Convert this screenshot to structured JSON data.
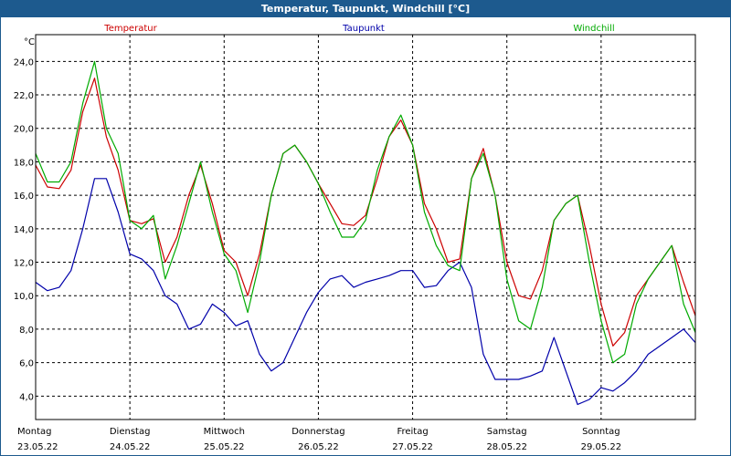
{
  "title": "Temperatur, Taupunkt, Windchill [°C]",
  "colors": {
    "titlebar": "#1d5a8e",
    "temperatur": "#cc0000",
    "taupunkt": "#0000aa",
    "windchill": "#00aa00",
    "grid": "#000000"
  },
  "chart_data": {
    "type": "line",
    "title": "Temperatur, Taupunkt, Windchill [°C]",
    "ylabel": "°C",
    "xlabel": "",
    "ylim": [
      2.6,
      25.6
    ],
    "yticks": [
      4.0,
      6.0,
      8.0,
      10.0,
      12.0,
      14.0,
      16.0,
      18.0,
      20.0,
      22.0,
      24.0
    ],
    "ytick_labels": [
      "4,0",
      "6,0",
      "8,0",
      "10,0",
      "12,0",
      "14,0",
      "16,0",
      "18,0",
      "20,0",
      "22,0",
      "24,0"
    ],
    "xlim": [
      0,
      168
    ],
    "grid": true,
    "legend_position": "top",
    "day_ticks": [
      {
        "hour": 0,
        "day": "Montag",
        "date": "23.05.22"
      },
      {
        "hour": 24,
        "day": "Dienstag",
        "date": "24.05.22"
      },
      {
        "hour": 48,
        "day": "Mittwoch",
        "date": "25.05.22"
      },
      {
        "hour": 72,
        "day": "Donnerstag",
        "date": "26.05.22"
      },
      {
        "hour": 96,
        "day": "Freitag",
        "date": "27.05.22"
      },
      {
        "hour": 120,
        "day": "Samstag",
        "date": "28.05.22"
      },
      {
        "hour": 144,
        "day": "Sonntag",
        "date": "29.05.22"
      }
    ],
    "x_hours": [
      0,
      3,
      6,
      9,
      12,
      15,
      18,
      21,
      24,
      27,
      30,
      33,
      36,
      39,
      42,
      45,
      48,
      51,
      54,
      57,
      60,
      63,
      66,
      69,
      72,
      75,
      78,
      81,
      84,
      87,
      90,
      93,
      96,
      99,
      102,
      105,
      108,
      111,
      114,
      117,
      120,
      123,
      126,
      129,
      132,
      135,
      138,
      141,
      144,
      147,
      150,
      153,
      156,
      159,
      162,
      165,
      168
    ],
    "series": [
      {
        "name": "Temperatur",
        "color": "#cc0000",
        "values": [
          17.8,
          16.5,
          16.4,
          17.5,
          21.0,
          23.0,
          19.5,
          17.5,
          14.5,
          14.3,
          14.6,
          12.0,
          13.5,
          16.0,
          17.8,
          15.5,
          12.7,
          12.0,
          10.0,
          12.5,
          16.0,
          18.5,
          19.0,
          18.0,
          16.7,
          15.5,
          14.3,
          14.2,
          14.8,
          17.0,
          19.5,
          20.5,
          19.0,
          15.5,
          14.0,
          12.0,
          12.2,
          17.0,
          18.8,
          16.0,
          12.0,
          10.0,
          9.8,
          11.5,
          14.5,
          15.5,
          16.0,
          13.0,
          9.5,
          7.0,
          7.8,
          10.0,
          11.0,
          12.0,
          13.0,
          10.8,
          8.8
        ]
      },
      {
        "name": "Taupunkt",
        "color": "#0000aa",
        "values": [
          10.8,
          10.3,
          10.5,
          11.5,
          14.0,
          17.0,
          17.0,
          15.0,
          12.5,
          12.2,
          11.5,
          10.0,
          9.5,
          8.0,
          8.3,
          9.5,
          9.0,
          8.2,
          8.5,
          6.5,
          5.5,
          6.0,
          7.5,
          9.0,
          10.2,
          11.0,
          11.2,
          10.5,
          10.8,
          11.0,
          11.2,
          11.5,
          11.5,
          10.5,
          10.6,
          11.5,
          12.0,
          10.5,
          6.5,
          5.0,
          5.0,
          5.0,
          5.2,
          5.5,
          7.5,
          5.5,
          3.5,
          3.8,
          4.5,
          4.3,
          4.8,
          5.5,
          6.5,
          7.0,
          7.5,
          8.0,
          7.2
        ]
      },
      {
        "name": "Windchill",
        "color": "#00aa00",
        "values": [
          18.5,
          16.8,
          16.8,
          18.0,
          21.5,
          24.0,
          20.0,
          18.5,
          14.5,
          14.0,
          14.8,
          11.0,
          13.0,
          15.5,
          18.0,
          15.0,
          12.5,
          11.5,
          9.0,
          12.0,
          16.0,
          18.5,
          19.0,
          18.0,
          16.7,
          15.0,
          13.5,
          13.5,
          14.5,
          17.5,
          19.5,
          20.8,
          19.0,
          15.0,
          13.0,
          11.8,
          11.5,
          17.0,
          18.5,
          16.0,
          11.0,
          8.5,
          8.0,
          10.5,
          14.5,
          15.5,
          16.0,
          12.0,
          8.5,
          6.0,
          6.5,
          9.5,
          11.0,
          12.0,
          13.0,
          9.5,
          7.8
        ]
      }
    ]
  }
}
